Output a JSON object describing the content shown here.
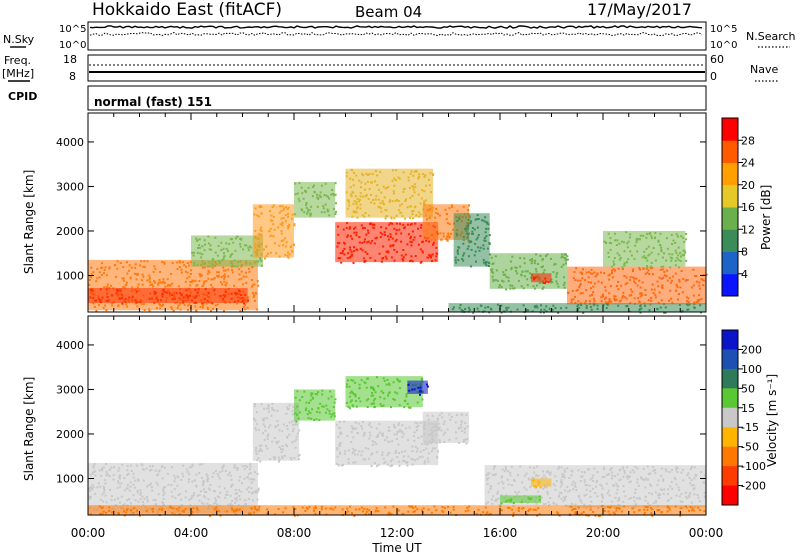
{
  "header": {
    "title": "Hokkaido East (fitACF)",
    "beam": "Beam 04",
    "date": "17/May/2017"
  },
  "params": {
    "nsky_label": "N.Sky",
    "nsearch_label": "N.Search",
    "nsky_ticks": [
      "10^5",
      "10^0"
    ],
    "nsearch_ticks": [
      "10^5",
      "10^0"
    ],
    "freq_label_1": "Freq.",
    "freq_label_2": "[MHz]",
    "freq_ticks": [
      "18",
      "8"
    ],
    "nave_label": "Nave",
    "nave_ticks": [
      "60",
      "0"
    ],
    "cpid_label": "CPID",
    "cpid_value": "normal (fast) 151"
  },
  "chart_data": [
    {
      "type": "heatmap",
      "panel": "power",
      "ylabel": "Slant Range [km]",
      "xlabel": "",
      "x_ticks": [],
      "y_ticks": [
        "1000",
        "2000",
        "3000",
        "4000"
      ],
      "ylim": [
        180,
        4650
      ],
      "colorbar": {
        "label": "Power [dB]",
        "ticks": [
          "4",
          "8",
          "12",
          "16",
          "20",
          "24",
          "28"
        ],
        "range": [
          0,
          32
        ],
        "colors": [
          "#0a14ff",
          "#1e64c8",
          "#3c8c5a",
          "#6ab04c",
          "#e6c828",
          "#ffa000",
          "#ff5a00",
          "#ff0000"
        ]
      },
      "regions": [
        {
          "t0": 0.0,
          "t1": 6.6,
          "r0": 220,
          "r1": 1350,
          "color": "#ff7a10"
        },
        {
          "t0": 0.0,
          "t1": 6.2,
          "r0": 380,
          "r1": 720,
          "color": "#ff3000"
        },
        {
          "t0": 4.0,
          "t1": 6.8,
          "r0": 1200,
          "r1": 1900,
          "color": "#7cb850"
        },
        {
          "t0": 6.4,
          "t1": 8.0,
          "r0": 1400,
          "r1": 2600,
          "color": "#ff9a20"
        },
        {
          "t0": 8.0,
          "t1": 9.6,
          "r0": 2300,
          "r1": 3100,
          "color": "#7cb850"
        },
        {
          "t0": 9.6,
          "t1": 13.6,
          "r0": 1300,
          "r1": 2200,
          "color": "#ff2000"
        },
        {
          "t0": 10.0,
          "t1": 13.4,
          "r0": 2300,
          "r1": 3400,
          "color": "#e6b428"
        },
        {
          "t0": 13.0,
          "t1": 14.8,
          "r0": 1800,
          "r1": 2600,
          "color": "#ff7a10"
        },
        {
          "t0": 14.2,
          "t1": 15.6,
          "r0": 1200,
          "r1": 2400,
          "color": "#3c8c5a"
        },
        {
          "t0": 15.6,
          "t1": 18.6,
          "r0": 700,
          "r1": 1500,
          "color": "#6ab04c"
        },
        {
          "t0": 17.2,
          "t1": 18.0,
          "r0": 850,
          "r1": 1050,
          "color": "#ff2000"
        },
        {
          "t0": 18.6,
          "t1": 24.0,
          "r0": 350,
          "r1": 1200,
          "color": "#ff6a10"
        },
        {
          "t0": 20.0,
          "t1": 23.2,
          "r0": 1200,
          "r1": 2000,
          "color": "#7cb850"
        },
        {
          "t0": 14.0,
          "t1": 24.0,
          "r0": 180,
          "r1": 380,
          "color": "#3c8c5a"
        }
      ]
    },
    {
      "type": "heatmap",
      "panel": "velocity",
      "ylabel": "Slant Range [km]",
      "xlabel": "Time UT",
      "x_ticks": [
        "00:00",
        "04:00",
        "08:00",
        "12:00",
        "16:00",
        "20:00",
        "00:00"
      ],
      "xlim": [
        0,
        24
      ],
      "y_ticks": [
        "1000",
        "2000",
        "3000",
        "4000"
      ],
      "ylim": [
        180,
        4650
      ],
      "colorbar": {
        "label": "Velocity [m s⁻¹]",
        "ticks": [
          "200",
          "100",
          "50",
          "15",
          "-15",
          "-50",
          "-100",
          "-200"
        ],
        "colors": [
          "#0a14c8",
          "#1e50b4",
          "#2e7a5a",
          "#5ac832",
          "#c8c8c8",
          "#ffb400",
          "#ff7800",
          "#ff3c00",
          "#ff0000"
        ]
      },
      "regions": [
        {
          "t0": 0.0,
          "t1": 6.6,
          "r0": 220,
          "r1": 1350,
          "color": "#c8c8c8"
        },
        {
          "t0": 6.4,
          "t1": 8.2,
          "r0": 1400,
          "r1": 2700,
          "color": "#c8c8c8"
        },
        {
          "t0": 8.0,
          "t1": 9.6,
          "r0": 2300,
          "r1": 3000,
          "color": "#5ac832"
        },
        {
          "t0": 9.6,
          "t1": 13.6,
          "r0": 1300,
          "r1": 2300,
          "color": "#c8c8c8"
        },
        {
          "t0": 10.0,
          "t1": 13.0,
          "r0": 2600,
          "r1": 3300,
          "color": "#5ac832"
        },
        {
          "t0": 12.4,
          "t1": 13.2,
          "r0": 2900,
          "r1": 3200,
          "color": "#0a14c8"
        },
        {
          "t0": 13.0,
          "t1": 14.8,
          "r0": 1800,
          "r1": 2500,
          "color": "#c8c8c8"
        },
        {
          "t0": 15.4,
          "t1": 18.6,
          "r0": 400,
          "r1": 1300,
          "color": "#c8c8c8"
        },
        {
          "t0": 16.0,
          "t1": 17.6,
          "r0": 450,
          "r1": 620,
          "color": "#5ac832"
        },
        {
          "t0": 17.2,
          "t1": 18.0,
          "r0": 820,
          "r1": 1000,
          "color": "#ffb400"
        },
        {
          "t0": 18.6,
          "t1": 24.0,
          "r0": 350,
          "r1": 1300,
          "color": "#c8c8c8"
        },
        {
          "t0": 0.0,
          "t1": 24.0,
          "r0": 180,
          "r1": 400,
          "color": "#ff7800"
        }
      ]
    }
  ]
}
